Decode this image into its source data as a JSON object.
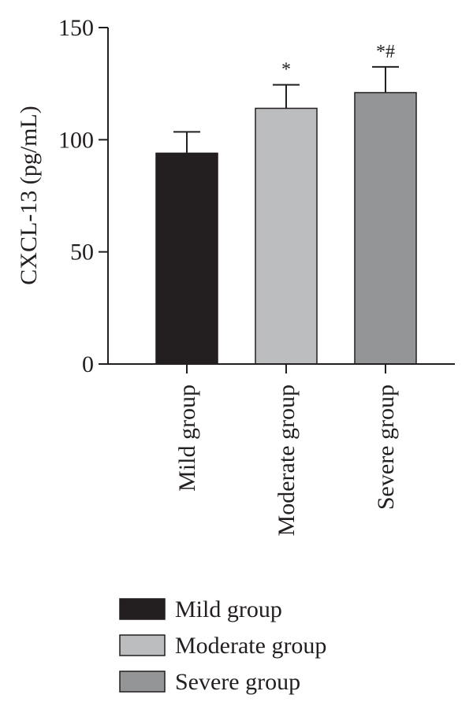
{
  "chart_data": {
    "type": "bar",
    "title": "",
    "xlabel": "",
    "ylabel": "CXCL-13 (pg/mL)",
    "ylim": [
      0,
      150
    ],
    "yticks": [
      0,
      50,
      100,
      150
    ],
    "categories": [
      "Mild group",
      "Moderate group",
      "Severe group"
    ],
    "values": [
      94,
      114,
      121
    ],
    "errors": [
      9.5,
      10.5,
      11.5
    ],
    "annotations": [
      "",
      "*",
      "*#"
    ],
    "colors": [
      "#231f20",
      "#bcbdbf",
      "#939597"
    ],
    "legend": {
      "position": "bottom",
      "entries": [
        "Mild group",
        "Moderate group",
        "Severe group"
      ]
    },
    "grid": false
  }
}
